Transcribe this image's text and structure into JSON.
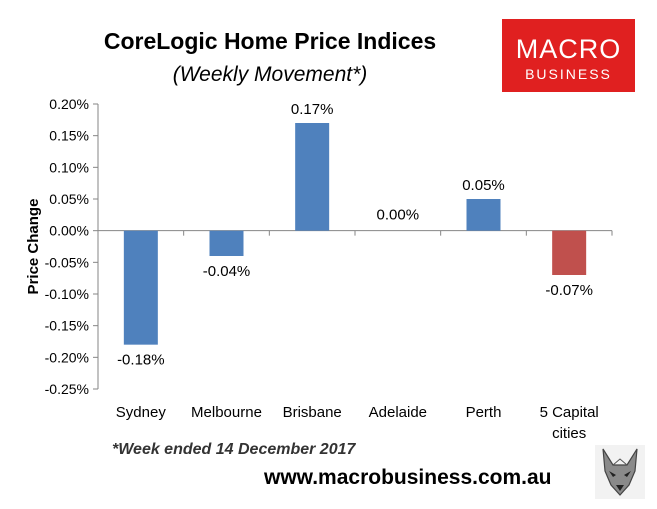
{
  "header": {
    "title": "CoreLogic Home Price Indices",
    "subtitle": "(Weekly Movement*)"
  },
  "logo": {
    "line1": "MACRO",
    "line2": "BUSINESS",
    "bg_color": "#e02020"
  },
  "footnote": "*Week ended 14 December 2017",
  "url": "www.macrobusiness.com.au",
  "wolf_icon": "wolf-head-icon",
  "chart_data": {
    "type": "bar",
    "title": "CoreLogic Home Price Indices",
    "subtitle": "(Weekly Movement*)",
    "ylabel": "Price Change",
    "xlabel": "",
    "categories": [
      [
        "Sydney"
      ],
      [
        "Melbourne"
      ],
      [
        "Brisbane"
      ],
      [
        "Adelaide"
      ],
      [
        "Perth"
      ],
      [
        "5 Capital",
        "cities"
      ]
    ],
    "values": [
      -0.18,
      -0.04,
      0.17,
      0.0,
      0.05,
      -0.07
    ],
    "data_labels": [
      "-0.18%",
      "-0.04%",
      "0.17%",
      "0.00%",
      "0.05%",
      "-0.07%"
    ],
    "bar_colors": [
      "#4f81bd",
      "#4f81bd",
      "#4f81bd",
      "#4f81bd",
      "#4f81bd",
      "#c0504d"
    ],
    "ylim": [
      -0.25,
      0.2
    ],
    "yticks": [
      0.2,
      0.15,
      0.1,
      0.05,
      0.0,
      -0.05,
      -0.1,
      -0.15,
      -0.2,
      -0.25
    ],
    "ytick_labels": [
      "0.20%",
      "0.15%",
      "0.10%",
      "0.05%",
      "0.00%",
      "-0.05%",
      "-0.10%",
      "-0.15%",
      "-0.20%",
      "-0.25%"
    ],
    "grid": false,
    "legend": "none"
  }
}
